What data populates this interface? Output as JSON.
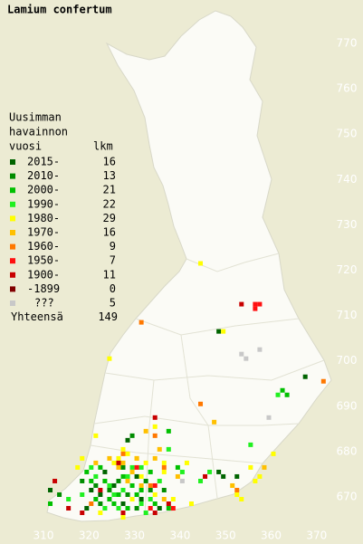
{
  "map": {
    "title": "Lamium confertum",
    "xlim": [
      302,
      378
    ],
    "ylim": [
      662,
      778
    ],
    "xticks": [
      310,
      320,
      330,
      340,
      350,
      360,
      370
    ],
    "yticks": [
      770,
      760,
      750,
      740,
      730,
      720,
      710,
      700,
      690,
      680,
      670
    ],
    "legend": {
      "title": [
        "Uusimman",
        "havainnon"
      ],
      "period_header": "vuosi",
      "count_header": "lkm",
      "items": [
        {
          "label": "2015-",
          "count": 16,
          "color": "#006400",
          "squares": [
            [
              348,
              675
            ],
            [
              349,
              674
            ],
            [
              367,
              696
            ],
            [
              348,
              706
            ],
            [
              328,
              682
            ],
            [
              325,
              672
            ],
            [
              322,
              670
            ],
            [
              327,
              668
            ],
            [
              320,
              671
            ],
            [
              330,
              674
            ],
            [
              323,
              675
            ],
            [
              331,
              669
            ],
            [
              335,
              667
            ],
            [
              352,
              674
            ],
            [
              319,
              667
            ],
            [
              311,
              671
            ]
          ]
        },
        {
          "label": "2010-",
          "count": 13,
          "color": "#008c00",
          "squares": [
            [
              329,
              683
            ],
            [
              324,
              671
            ],
            [
              321,
              672
            ],
            [
              326,
              673
            ],
            [
              328,
              670
            ],
            [
              330,
              667
            ],
            [
              332,
              673
            ],
            [
              318,
              673
            ],
            [
              327,
              676
            ],
            [
              313,
              670
            ],
            [
              336,
              671
            ],
            [
              322,
              668
            ],
            [
              333,
              671
            ]
          ]
        },
        {
          "label": "2000-",
          "count": 21,
          "color": "#00c000",
          "squares": [
            [
              362,
              693
            ],
            [
              363,
              692
            ],
            [
              337,
              684
            ],
            [
              326,
              670
            ],
            [
              321,
              669
            ],
            [
              329,
              672
            ],
            [
              323,
              673
            ],
            [
              331,
              671
            ],
            [
              324,
              669
            ],
            [
              319,
              675
            ],
            [
              334,
              668
            ],
            [
              327,
              674
            ],
            [
              339,
              676
            ],
            [
              330,
              670
            ],
            [
              322,
              676
            ],
            [
              325,
              668
            ],
            [
              337,
              667
            ],
            [
              320,
              673
            ],
            [
              328,
              667
            ],
            [
              333,
              675
            ],
            [
              311,
              668
            ]
          ]
        },
        {
          "label": "1990-",
          "count": 22,
          "color": "#20f020",
          "squares": [
            [
              355,
              681
            ],
            [
              361,
              692
            ],
            [
              337,
              680
            ],
            [
              325,
              670
            ],
            [
              327,
              671
            ],
            [
              320,
              676
            ],
            [
              331,
              668
            ],
            [
              346,
              675
            ],
            [
              328,
              674
            ],
            [
              323,
              667
            ],
            [
              333,
              669
            ],
            [
              329,
              676
            ],
            [
              318,
              670
            ],
            [
              340,
              675
            ],
            [
              335,
              673
            ],
            [
              326,
              667
            ],
            [
              331,
              676
            ],
            [
              321,
              674
            ],
            [
              344,
              673
            ],
            [
              324,
              672
            ],
            [
              332,
              666
            ],
            [
              315,
              669
            ]
          ]
        },
        {
          "label": "1980-",
          "count": 29,
          "color": "#ffff00",
          "squares": [
            [
              344,
              721
            ],
            [
              349,
              706
            ],
            [
              324,
              700
            ],
            [
              321,
              683
            ],
            [
              334,
              685
            ],
            [
              327,
              680
            ],
            [
              360,
              679
            ],
            [
              352,
              670
            ],
            [
              353,
              669
            ],
            [
              328,
              679
            ],
            [
              325,
              677
            ],
            [
              330,
              678
            ],
            [
              326,
              678
            ],
            [
              318,
              678
            ],
            [
              331,
              674
            ],
            [
              336,
              677
            ],
            [
              341,
              677
            ],
            [
              356,
              673
            ],
            [
              357,
              674
            ],
            [
              338,
              669
            ],
            [
              329,
              669
            ],
            [
              334,
              670
            ],
            [
              327,
              665
            ],
            [
              322,
              666
            ],
            [
              332,
              677
            ],
            [
              342,
              668
            ],
            [
              317,
              676
            ],
            [
              336,
              675
            ],
            [
              355,
              676
            ]
          ]
        },
        {
          "label": "1970-",
          "count": 16,
          "color": "#ffc000",
          "squares": [
            [
              347,
              686
            ],
            [
              332,
              684
            ],
            [
              330,
              678
            ],
            [
              327,
              677
            ],
            [
              335,
              680
            ],
            [
              326,
              676
            ],
            [
              329,
              675
            ],
            [
              321,
              677
            ],
            [
              334,
              678
            ],
            [
              339,
              674
            ],
            [
              351,
              672
            ],
            [
              358,
              676
            ],
            [
              331,
              672
            ],
            [
              336,
              669
            ],
            [
              328,
              673
            ],
            [
              324,
              678
            ]
          ]
        },
        {
          "label": "1960-",
          "count": 9,
          "color": "#ff7800",
          "squares": [
            [
              331,
              708
            ],
            [
              344,
              690
            ],
            [
              334,
              683
            ],
            [
              371,
              695
            ],
            [
              336,
              676
            ],
            [
              327,
              679
            ],
            [
              333,
              672
            ],
            [
              352,
              671
            ],
            [
              320,
              668
            ]
          ]
        },
        {
          "label": "1950-",
          "count": 7,
          "color": "#ff1010",
          "squares": [
            [
              356,
              712
            ],
            [
              357,
              712
            ],
            [
              356,
              711
            ],
            [
              333,
              667
            ],
            [
              334,
              672
            ],
            [
              330,
              676
            ],
            [
              338,
              667
            ]
          ]
        },
        {
          "label": "1900-",
          "count": 11,
          "color": "#c80000",
          "squares": [
            [
              353,
              712
            ],
            [
              334,
              687
            ],
            [
              326,
              677
            ],
            [
              322,
              671
            ],
            [
              315,
              667
            ],
            [
              334,
              666
            ],
            [
              318,
              666
            ],
            [
              327,
              666
            ],
            [
              337,
              668
            ],
            [
              312,
              673
            ],
            [
              345,
              674
            ]
          ]
        },
        {
          "label": "-1899",
          "count": 0,
          "color": "#800000",
          "squares": []
        },
        {
          "label": "???",
          "count": 5,
          "color": "#c8c8c8",
          "squares": [
            [
              357,
              702
            ],
            [
              353,
              701
            ],
            [
              354,
              700
            ],
            [
              359,
              687
            ],
            [
              340,
              673
            ]
          ]
        }
      ],
      "total_label": "Yhteensä",
      "total": 149
    }
  }
}
